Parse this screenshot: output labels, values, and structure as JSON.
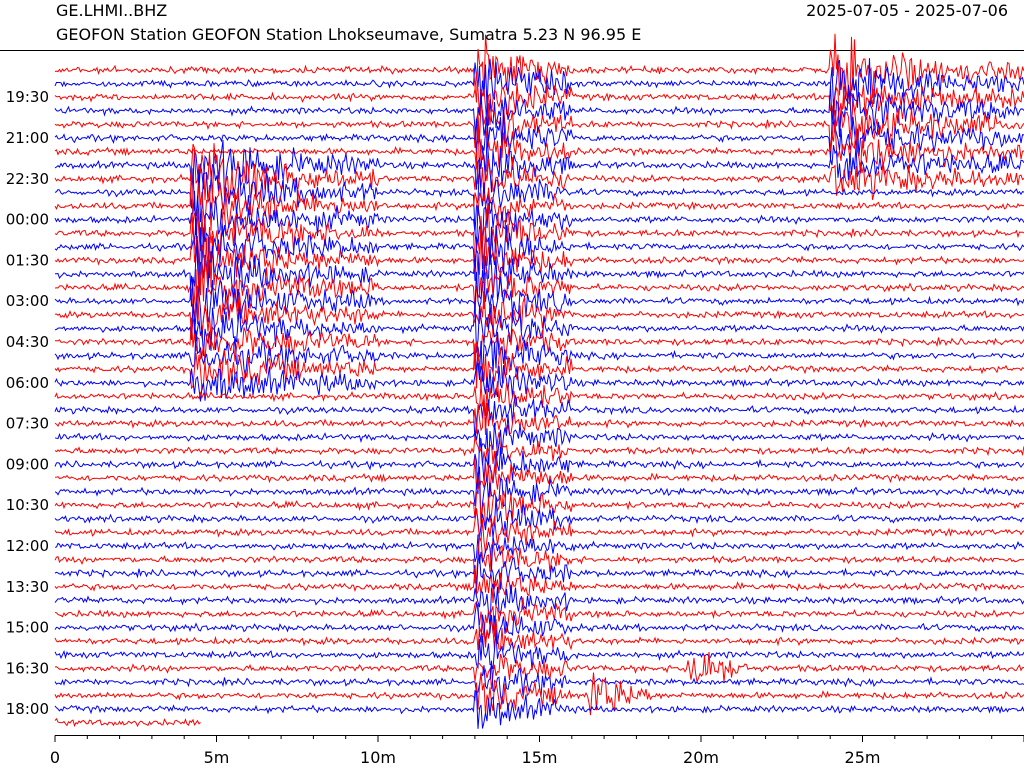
{
  "header": {
    "station_code": "GE.LHMI..BHZ",
    "date_range": "2025-07-05 - 2025-07-06",
    "description": "GEOFON Station GEOFON Station Lhokseumave, Sumatra  5.23 N 96.95 E"
  },
  "chart_data": {
    "type": "line",
    "title": "GE.LHMI..BHZ",
    "xlabel": "",
    "ylabel": "",
    "x_range_minutes": [
      0,
      30
    ],
    "x_ticks": [
      {
        "value": 0,
        "label": "0"
      },
      {
        "value": 5,
        "label": "5m"
      },
      {
        "value": 10,
        "label": "10m"
      },
      {
        "value": 15,
        "label": "15m"
      },
      {
        "value": 20,
        "label": "20m"
      },
      {
        "value": 25,
        "label": "25m"
      }
    ],
    "y_tick_labels": [
      "19:30",
      "21:00",
      "22:30",
      "00:00",
      "01:30",
      "03:00",
      "04:30",
      "06:00",
      "07:30",
      "09:00",
      "10:30",
      "12:00",
      "13:30",
      "15:00",
      "16:30",
      "18:00"
    ],
    "trace_count": 49,
    "trace_minutes": 30,
    "last_trace_minutes": 4.5,
    "trace_colors": [
      "#ff0000",
      "#0000ff"
    ],
    "events": [
      {
        "start_minute": 4.2,
        "end_minute": 10.0,
        "first_trace": 7,
        "last_trace": 23
      },
      {
        "start_minute": 13.0,
        "end_minute": 16.0,
        "first_trace": 0,
        "last_trace": 48
      },
      {
        "start_minute": 24.0,
        "end_minute": 30.0,
        "first_trace": 0,
        "last_trace": 8
      },
      {
        "start_minute": 19.5,
        "end_minute": 21.5,
        "first_trace": 44,
        "last_trace": 44
      },
      {
        "start_minute": 16.5,
        "end_minute": 18.5,
        "first_trace": 46,
        "last_trace": 46
      }
    ]
  }
}
